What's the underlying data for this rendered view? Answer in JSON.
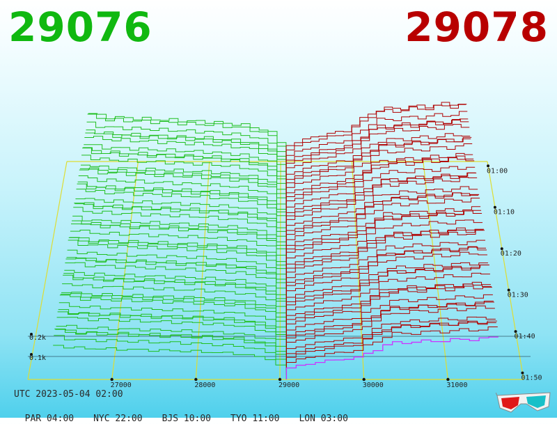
{
  "header": {
    "bid_price": "29076",
    "ask_price": "29078",
    "bid_color": "#10b810",
    "ask_color": "#b80000"
  },
  "footer": {
    "utc_label": "UTC 2023-05-04 02:00",
    "zones": [
      "PAR 04:00",
      "NYC 22:00",
      "BJS 10:00",
      "TYO 11:00",
      "LON 03:00"
    ]
  },
  "icons": {
    "glasses": "3d-glasses-icon"
  },
  "chart_data": {
    "type": "area",
    "x_ticks": [
      "27000",
      "28000",
      "29000",
      "30000",
      "31000"
    ],
    "time_ticks": [
      "01:00",
      "01:10",
      "01:20",
      "01:30",
      "01:40",
      "01:50"
    ],
    "depth_ticks": [
      "0.2k",
      "0.1k"
    ],
    "xlim": [
      26000,
      31900
    ],
    "mid_price": 29077,
    "colors": {
      "bids": "#1fbf1f",
      "asks": "#b00000",
      "latest": "#cc33ff",
      "grid": "#dddd33"
    },
    "bid_cumulative_depth": [
      {
        "price": 26300,
        "depth": 0.28
      },
      {
        "price": 26500,
        "depth": 0.26
      },
      {
        "price": 27000,
        "depth": 0.25
      },
      {
        "price": 27500,
        "depth": 0.24
      },
      {
        "price": 28000,
        "depth": 0.23
      },
      {
        "price": 28500,
        "depth": 0.21
      },
      {
        "price": 28900,
        "depth": 0.16
      },
      {
        "price": 29076,
        "depth": 0.0
      }
    ],
    "ask_cumulative_depth": [
      {
        "price": 29078,
        "depth": 0.0
      },
      {
        "price": 29200,
        "depth": 0.1
      },
      {
        "price": 29600,
        "depth": 0.15
      },
      {
        "price": 30000,
        "depth": 0.18
      },
      {
        "price": 30400,
        "depth": 0.3
      },
      {
        "price": 31000,
        "depth": 0.32
      },
      {
        "price": 31600,
        "depth": 0.34
      }
    ]
  }
}
